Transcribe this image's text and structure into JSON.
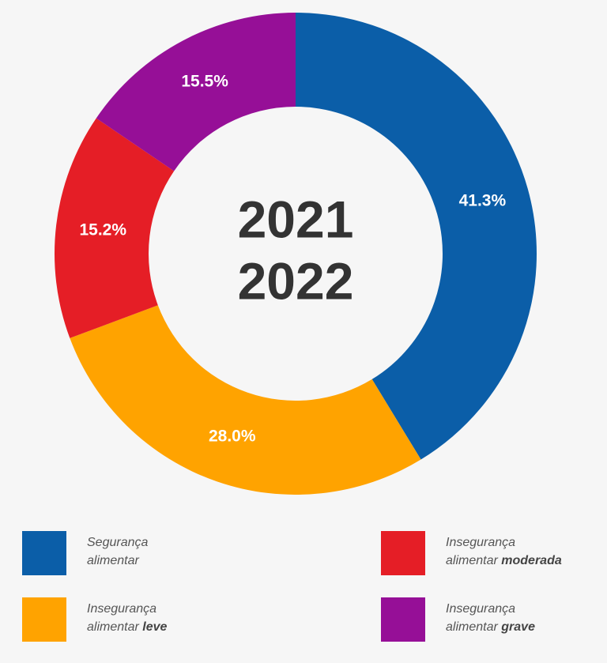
{
  "chart_data": {
    "type": "donut",
    "center_label": [
      "2021",
      "2022"
    ],
    "categories": [
      [
        "Segurança alimentar"
      ],
      [
        "Insegurança alimentar",
        "leve"
      ],
      [
        "Insegurança alimentar",
        "moderada"
      ],
      [
        "Insegurança alimentar",
        "grave"
      ]
    ],
    "values": [
      41.3,
      28.0,
      15.2,
      15.5
    ],
    "value_labels": [
      "41.3%",
      "28.0%",
      "15.2%",
      "15.5%"
    ],
    "colors": [
      "#0b5ea8",
      "#ffa300",
      "#e51e26",
      "#960f97"
    ]
  }
}
